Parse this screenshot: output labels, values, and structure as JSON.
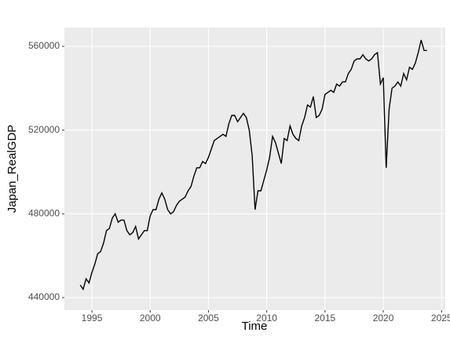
{
  "chart_data": {
    "type": "line",
    "x_label": "Time",
    "y_label": "Japan_RealGDP",
    "x": [
      1994,
      1994.25,
      1994.5,
      1994.75,
      1995,
      1995.25,
      1995.5,
      1995.75,
      1996,
      1996.25,
      1996.5,
      1996.75,
      1997,
      1997.25,
      1997.5,
      1997.75,
      1998,
      1998.25,
      1998.5,
      1998.75,
      1999,
      1999.25,
      1999.5,
      1999.75,
      2000,
      2000.25,
      2000.5,
      2000.75,
      2001,
      2001.25,
      2001.5,
      2001.75,
      2002,
      2002.25,
      2002.5,
      2002.75,
      2003,
      2003.25,
      2003.5,
      2003.75,
      2004,
      2004.25,
      2004.5,
      2004.75,
      2005,
      2005.25,
      2005.5,
      2005.75,
      2006,
      2006.25,
      2006.5,
      2006.75,
      2007,
      2007.25,
      2007.5,
      2007.75,
      2008,
      2008.25,
      2008.5,
      2008.75,
      2009,
      2009.25,
      2009.5,
      2009.75,
      2010,
      2010.25,
      2010.5,
      2010.75,
      2011,
      2011.25,
      2011.5,
      2011.75,
      2012,
      2012.25,
      2012.5,
      2012.75,
      2013,
      2013.25,
      2013.5,
      2013.75,
      2014,
      2014.25,
      2014.5,
      2014.75,
      2015,
      2015.25,
      2015.5,
      2015.75,
      2016,
      2016.25,
      2016.5,
      2016.75,
      2017,
      2017.25,
      2017.5,
      2017.75,
      2018,
      2018.25,
      2018.5,
      2018.75,
      2019,
      2019.25,
      2019.5,
      2019.75,
      2020,
      2020.25,
      2020.5,
      2020.75,
      2021,
      2021.25,
      2021.5,
      2021.75,
      2022,
      2022.25,
      2022.5,
      2022.75,
      2023,
      2023.25,
      2023.5,
      2023.75
    ],
    "series": [
      {
        "color": "#000000",
        "values": [
          446000,
          444000,
          449000,
          447000,
          452000,
          456000,
          461000,
          462000,
          466000,
          472000,
          473000,
          478000,
          480000,
          476000,
          477000,
          477000,
          472000,
          470000,
          471000,
          474000,
          468000,
          470000,
          472000,
          472000,
          479000,
          482000,
          482000,
          487000,
          490000,
          487000,
          482000,
          480000,
          481000,
          484000,
          486000,
          487000,
          488000,
          491000,
          493000,
          498000,
          502000,
          502000,
          505000,
          504000,
          507000,
          511000,
          515000,
          516000,
          517000,
          518000,
          517000,
          523000,
          527000,
          527000,
          524000,
          526000,
          528000,
          526000,
          520000,
          508000,
          482000,
          491000,
          491000,
          496000,
          501000,
          507000,
          517000,
          514000,
          509000,
          504000,
          516000,
          515000,
          522000,
          518000,
          516000,
          515000,
          522000,
          526000,
          532000,
          531000,
          536000,
          526000,
          527000,
          530000,
          537000,
          538000,
          539000,
          538000,
          542000,
          541000,
          543000,
          543000,
          547000,
          549000,
          553000,
          554000,
          554000,
          556000,
          554000,
          553000,
          554000,
          556000,
          557000,
          542000,
          545000,
          502000,
          530000,
          540000,
          541000,
          543000,
          541000,
          547000,
          544000,
          550000,
          549000,
          552000,
          557000,
          563000,
          558000,
          558000
        ]
      }
    ],
    "xlim": [
      1992.64,
      2025.32
    ],
    "xticks": [
      1995,
      2000,
      2005,
      2010,
      2015,
      2020,
      2025
    ],
    "ylim": [
      434000,
      569000
    ],
    "yticks": [
      440000,
      480000,
      520000,
      560000
    ],
    "grid": true
  }
}
